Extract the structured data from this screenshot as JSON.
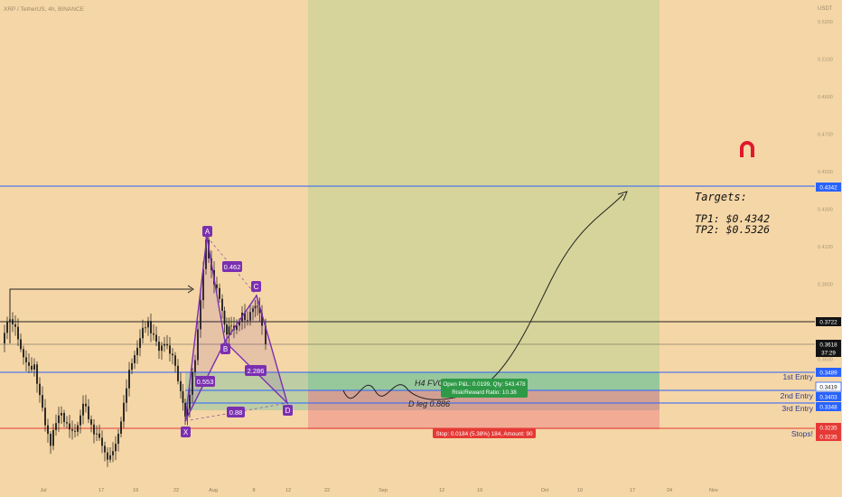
{
  "header": {
    "symbol_line": "XRP / TetherUS, 4h, BINANCE"
  },
  "axis": {
    "currency": "USDT",
    "price_ticks": [
      "0.5300",
      "0.5100",
      "0.4900",
      "0.4700",
      "0.4500",
      "0.4300",
      "0.4100",
      "0.3900",
      "0.3700",
      "0.3500",
      "0.3300",
      "0.3100"
    ],
    "time_ticks": [
      "Jul",
      "17",
      "19",
      "22",
      "Aug",
      "8",
      "12",
      "22",
      "Sep",
      "12",
      "19",
      "Oct",
      "10",
      "17",
      "24",
      "Nov"
    ]
  },
  "price_tags": [
    {
      "label": "0.4342",
      "kind": "blue"
    },
    {
      "label": "0.3722",
      "kind": "black"
    },
    {
      "label": "0.3618",
      "kind": "black"
    },
    {
      "label": "37:29",
      "kind": "black"
    },
    {
      "label": "0.3489",
      "kind": "blue"
    },
    {
      "label": "0.3419",
      "kind": "outline"
    },
    {
      "label": "0.3403",
      "kind": "blue"
    },
    {
      "label": "0.3348",
      "kind": "blue"
    },
    {
      "label": "0.3235",
      "kind": "red"
    },
    {
      "label": "0.3235",
      "kind": "red"
    }
  ],
  "level_labels": [
    "1st Entry",
    "2nd Entry",
    "3rd Entry",
    "Stops!"
  ],
  "pattern": {
    "points": [
      "A",
      "B",
      "C",
      "D",
      "X"
    ],
    "ratios": [
      "0.462",
      "0.553",
      "2.286",
      "0.88"
    ]
  },
  "annotations": {
    "fvg": "H4 FVG",
    "dleg": "D leg 0.886",
    "targets_title": "Targets:",
    "tp1": "TP1: $0.4342",
    "tp2": "TP2: $0.5326"
  },
  "position_box": {
    "line1": "Open P&L: 0.0199, Qty: 543.478",
    "line2": "Risk/Reward Ratio: 10.38",
    "stop_label": "Stop: 0.0184 (5.38%) 184, Amount: 90"
  },
  "colors": {
    "background": "#f5d6a6",
    "target_zone": "#d6d49a",
    "profit_zone": "#7fc39a",
    "loss_zone": "#ef8a88",
    "pattern": "#7b2fb0",
    "level_blue": "#2962ff",
    "level_red": "#e53935",
    "magnet": "#e0192c"
  },
  "icons": [
    "magnet-icon"
  ],
  "chart_data": {
    "type": "candlestick",
    "title": "",
    "price_range": [
      0.3,
      0.54
    ],
    "levels": [
      {
        "name": "TP1",
        "value": 0.4342
      },
      {
        "name": "",
        "value": 0.3722
      },
      {
        "name": "1st Entry",
        "value": 0.3489
      },
      {
        "name": "2nd Entry",
        "value": 0.3403
      },
      {
        "name": "3rd Entry",
        "value": 0.3348
      },
      {
        "name": "Stops!",
        "value": 0.3235
      }
    ],
    "last_price": 0.3618,
    "pattern_points": [
      {
        "label": "X",
        "value": 0.325
      },
      {
        "label": "A",
        "value": 0.41
      },
      {
        "label": "B",
        "value": 0.362
      },
      {
        "label": "C",
        "value": 0.38
      },
      {
        "label": "D",
        "value": 0.334
      }
    ],
    "targets": [
      0.4342,
      0.5326
    ]
  }
}
